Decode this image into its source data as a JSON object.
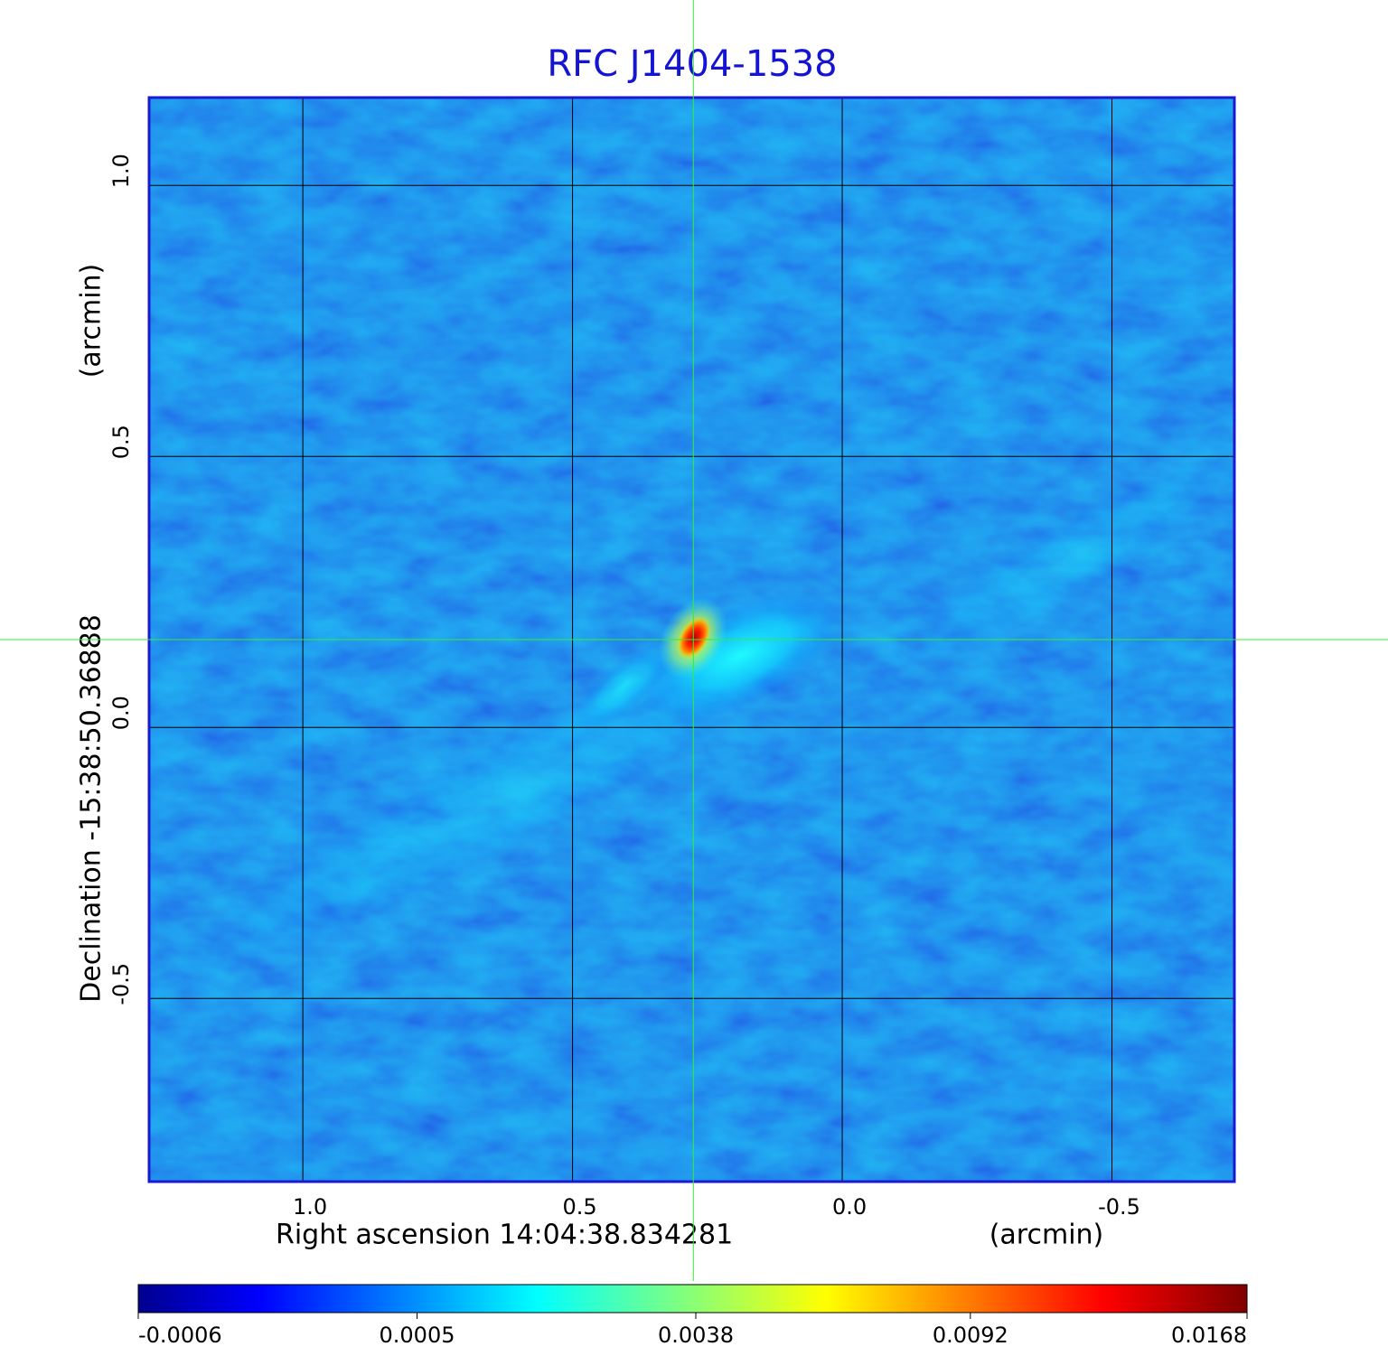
{
  "chart_data": {
    "type": "image",
    "title": "RFC J1404-1538",
    "title_color": "#1414d2",
    "x_label": "Right ascension  14:04:38.834281",
    "x_unit": "(arcmin)",
    "y_label": "Declination  -15:38:50.36888",
    "y_unit": "(arcmin)",
    "xlim": [
      1.285,
      -0.727
    ],
    "ylim": [
      -0.838,
      1.162
    ],
    "xticks": [
      {
        "value": 1,
        "label": "1.0"
      },
      0.5,
      {
        "value": 0,
        "label": "0.0"
      },
      -0.5
    ],
    "yticks": [
      {
        "value": 1,
        "label": "1.0"
      },
      0.5,
      {
        "value": 0,
        "label": "0.0"
      },
      -0.5
    ],
    "grid": true,
    "grid_color": "#000000",
    "border_color": "#1a1ad0",
    "colormap": "jet",
    "colorbar_scale": "sqrt",
    "clim": [
      -0.0006,
      0.0168
    ],
    "colorbar_ticks": [
      -0.0006,
      0.0005,
      0.0038,
      0.0092,
      0.0168
    ],
    "crosshair": {
      "x": 0.276,
      "y": 0.162,
      "color": "#33ee33"
    }
  }
}
